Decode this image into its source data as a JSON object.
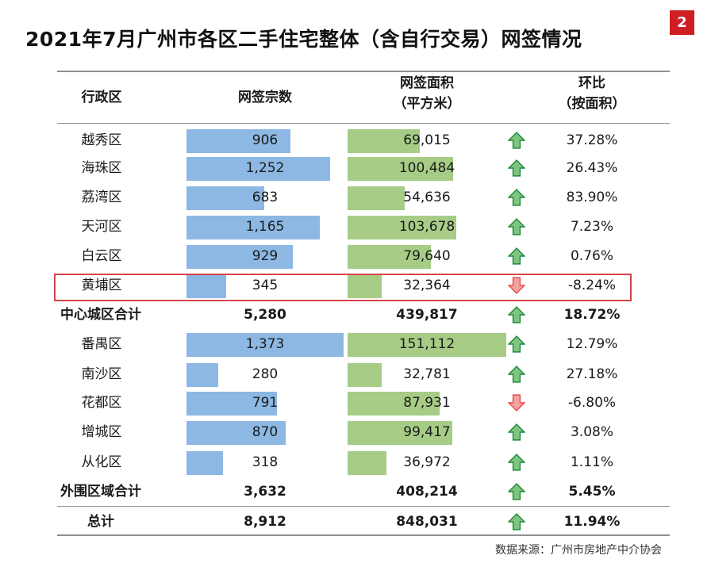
{
  "badge": "2",
  "title": "2021年7月广州市各区二手住宅整体（含自行交易）网签情况",
  "headers": {
    "district": "行政区",
    "count": "网签宗数",
    "area_line1": "网签面积",
    "area_line2": "（平方米）",
    "mom_line1": "环比",
    "mom_line2": "（按面积）"
  },
  "source": "数据来源：广州市房地产中介协会",
  "colors": {
    "count_bar": "#8cb8e3",
    "area_bar": "#a6cc86",
    "up_arrow": "#1f8a3a",
    "down_arrow": "#e24c4c",
    "highlight": "#d8444a",
    "badge": "#cf1f25"
  },
  "chart_data": {
    "type": "table",
    "title": "2021年7月广州市各区二手住宅整体（含自行交易）网签情况",
    "columns": [
      "行政区",
      "网签宗数",
      "网签面积（平方米）",
      "环比（按面积）"
    ],
    "rows": [
      {
        "name": "越秀区",
        "count": 906,
        "count_label": "906",
        "area": 69015,
        "area_label": "69,015",
        "trend": "up",
        "mom": "37.28%",
        "bold": false,
        "bar": true
      },
      {
        "name": "海珠区",
        "count": 1252,
        "count_label": "1,252",
        "area": 100484,
        "area_label": "100,484",
        "trend": "up",
        "mom": "26.43%",
        "bold": false,
        "bar": true
      },
      {
        "name": "荔湾区",
        "count": 683,
        "count_label": "683",
        "area": 54636,
        "area_label": "54,636",
        "trend": "up",
        "mom": "83.90%",
        "bold": false,
        "bar": true
      },
      {
        "name": "天河区",
        "count": 1165,
        "count_label": "1,165",
        "area": 103678,
        "area_label": "103,678",
        "trend": "up",
        "mom": "7.23%",
        "bold": false,
        "bar": true
      },
      {
        "name": "白云区",
        "count": 929,
        "count_label": "929",
        "area": 79640,
        "area_label": "79,640",
        "trend": "up",
        "mom": "0.76%",
        "bold": false,
        "bar": true
      },
      {
        "name": "黄埔区",
        "count": 345,
        "count_label": "345",
        "area": 32364,
        "area_label": "32,364",
        "trend": "down",
        "mom": "-8.24%",
        "bold": false,
        "bar": true,
        "highlight": true
      },
      {
        "name": "中心城区合计",
        "count": 5280,
        "count_label": "5,280",
        "area": 439817,
        "area_label": "439,817",
        "trend": "up",
        "mom": "18.72%",
        "bold": true,
        "bar": false
      },
      {
        "name": "番禺区",
        "count": 1373,
        "count_label": "1,373",
        "area": 151112,
        "area_label": "151,112",
        "trend": "up",
        "mom": "12.79%",
        "bold": false,
        "bar": true
      },
      {
        "name": "南沙区",
        "count": 280,
        "count_label": "280",
        "area": 32781,
        "area_label": "32,781",
        "trend": "up",
        "mom": "27.18%",
        "bold": false,
        "bar": true
      },
      {
        "name": "花都区",
        "count": 791,
        "count_label": "791",
        "area": 87931,
        "area_label": "87,931",
        "trend": "down",
        "mom": "-6.80%",
        "bold": false,
        "bar": true
      },
      {
        "name": "增城区",
        "count": 870,
        "count_label": "870",
        "area": 99417,
        "area_label": "99,417",
        "trend": "up",
        "mom": "3.08%",
        "bold": false,
        "bar": true
      },
      {
        "name": "从化区",
        "count": 318,
        "count_label": "318",
        "area": 36972,
        "area_label": "36,972",
        "trend": "up",
        "mom": "1.11%",
        "bold": false,
        "bar": true
      },
      {
        "name": "外围区域合计",
        "count": 3632,
        "count_label": "3,632",
        "area": 408214,
        "area_label": "408,214",
        "trend": "up",
        "mom": "5.45%",
        "bold": true,
        "bar": false
      },
      {
        "name": "总计",
        "count": 8912,
        "count_label": "8,912",
        "area": 848031,
        "area_label": "848,031",
        "trend": "up",
        "mom": "11.94%",
        "bold": true,
        "bar": false
      }
    ]
  }
}
